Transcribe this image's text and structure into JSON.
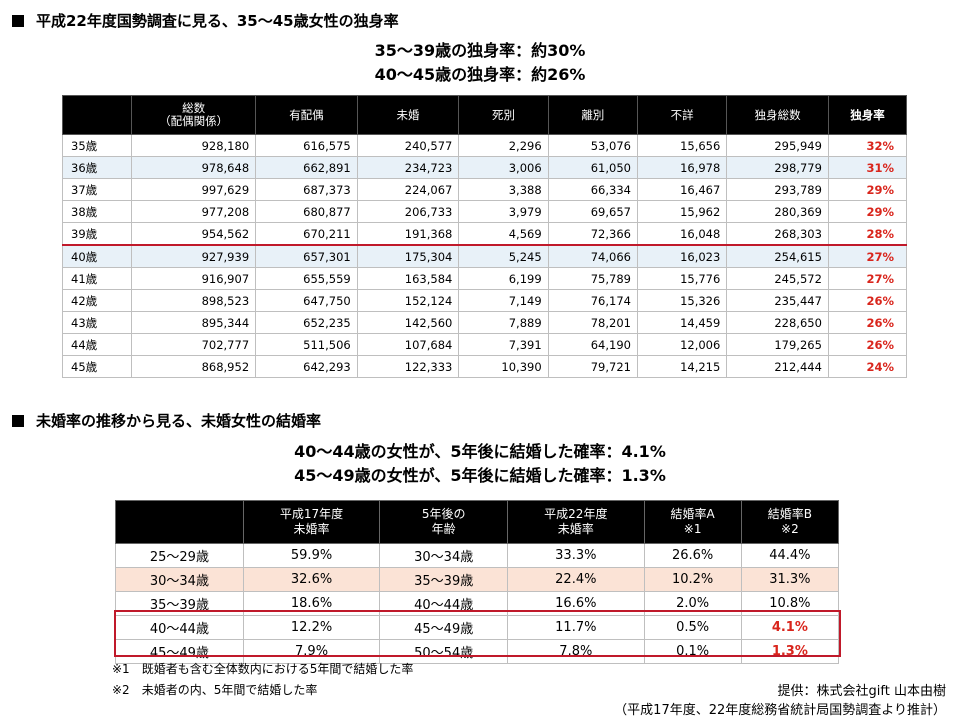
{
  "section1": {
    "title": "平成22年度国勢調査に見る、35～45歳女性の独身率",
    "headline1": "35～39歳の独身率：約30%",
    "headline2": "40～45歳の独身率：約26%",
    "headers": [
      "",
      "総数\n（配偶関係）",
      "有配偶",
      "未婚",
      "死別",
      "離別",
      "不詳",
      "独身総数",
      "独身率"
    ],
    "rows": [
      [
        "35歳",
        "928,180",
        "616,575",
        "240,577",
        "2,296",
        "53,076",
        "15,656",
        "295,949",
        "32%"
      ],
      [
        "36歳",
        "978,648",
        "662,891",
        "234,723",
        "3,006",
        "61,050",
        "16,978",
        "298,779",
        "31%"
      ],
      [
        "37歳",
        "997,629",
        "687,373",
        "224,067",
        "3,388",
        "66,334",
        "16,467",
        "293,789",
        "29%"
      ],
      [
        "38歳",
        "977,208",
        "680,877",
        "206,733",
        "3,979",
        "69,657",
        "15,962",
        "280,369",
        "29%"
      ],
      [
        "39歳",
        "954,562",
        "670,211",
        "191,368",
        "4,569",
        "72,366",
        "16,048",
        "268,303",
        "28%"
      ],
      [
        "40歳",
        "927,939",
        "657,301",
        "175,304",
        "5,245",
        "74,066",
        "16,023",
        "254,615",
        "27%"
      ],
      [
        "41歳",
        "916,907",
        "655,559",
        "163,584",
        "6,199",
        "75,789",
        "15,776",
        "245,572",
        "27%"
      ],
      [
        "42歳",
        "898,523",
        "647,750",
        "152,124",
        "7,149",
        "76,174",
        "15,326",
        "235,447",
        "26%"
      ],
      [
        "43歳",
        "895,344",
        "652,235",
        "142,560",
        "7,889",
        "78,201",
        "14,459",
        "228,650",
        "26%"
      ],
      [
        "44歳",
        "702,777",
        "511,506",
        "107,684",
        "7,391",
        "64,190",
        "12,006",
        "179,265",
        "26%"
      ],
      [
        "45歳",
        "868,952",
        "642,293",
        "122,333",
        "10,390",
        "79,721",
        "14,215",
        "212,444",
        "24%"
      ]
    ]
  },
  "section2": {
    "title": "未婚率の推移から見る、未婚女性の結婚率",
    "headline1": "40～44歳の女性が、5年後に結婚した確率：4.1%",
    "headline2": "45～49歳の女性が、5年後に結婚した確率：1.3%",
    "headers": [
      "",
      "平成17年度\n未婚率",
      "5年後の\n年齢",
      "平成22年度\n未婚率",
      "結婚率A\n※1",
      "結婚率B\n※2"
    ],
    "rows": [
      [
        "25～29歳",
        "59.9%",
        "30～34歳",
        "33.3%",
        "26.6%",
        "44.4%"
      ],
      [
        "30～34歳",
        "32.6%",
        "35～39歳",
        "22.4%",
        "10.2%",
        "31.3%"
      ],
      [
        "35～39歳",
        "18.6%",
        "40～44歳",
        "16.6%",
        "2.0%",
        "10.8%"
      ],
      [
        "40～44歳",
        "12.2%",
        "45～49歳",
        "11.7%",
        "0.5%",
        "4.1%"
      ],
      [
        "45～49歳",
        "7.9%",
        "50～54歳",
        "7.8%",
        "0.1%",
        "1.3%"
      ]
    ],
    "note1": "※1　既婚者も含む全体数内における5年間で結婚した率",
    "note2": "※2　未婚者の内、5年間で結婚した率"
  },
  "credit": {
    "line1": "提供：株式会社gift 山本由樹",
    "line2": "（平成17年度、22年度総務省統計局国勢調査より推計）"
  },
  "colors": {
    "header_bg": "#000000",
    "highlight_red": "#d9251c",
    "row_blue": "#e8f1f8",
    "row_peach": "#fbe3d6"
  }
}
